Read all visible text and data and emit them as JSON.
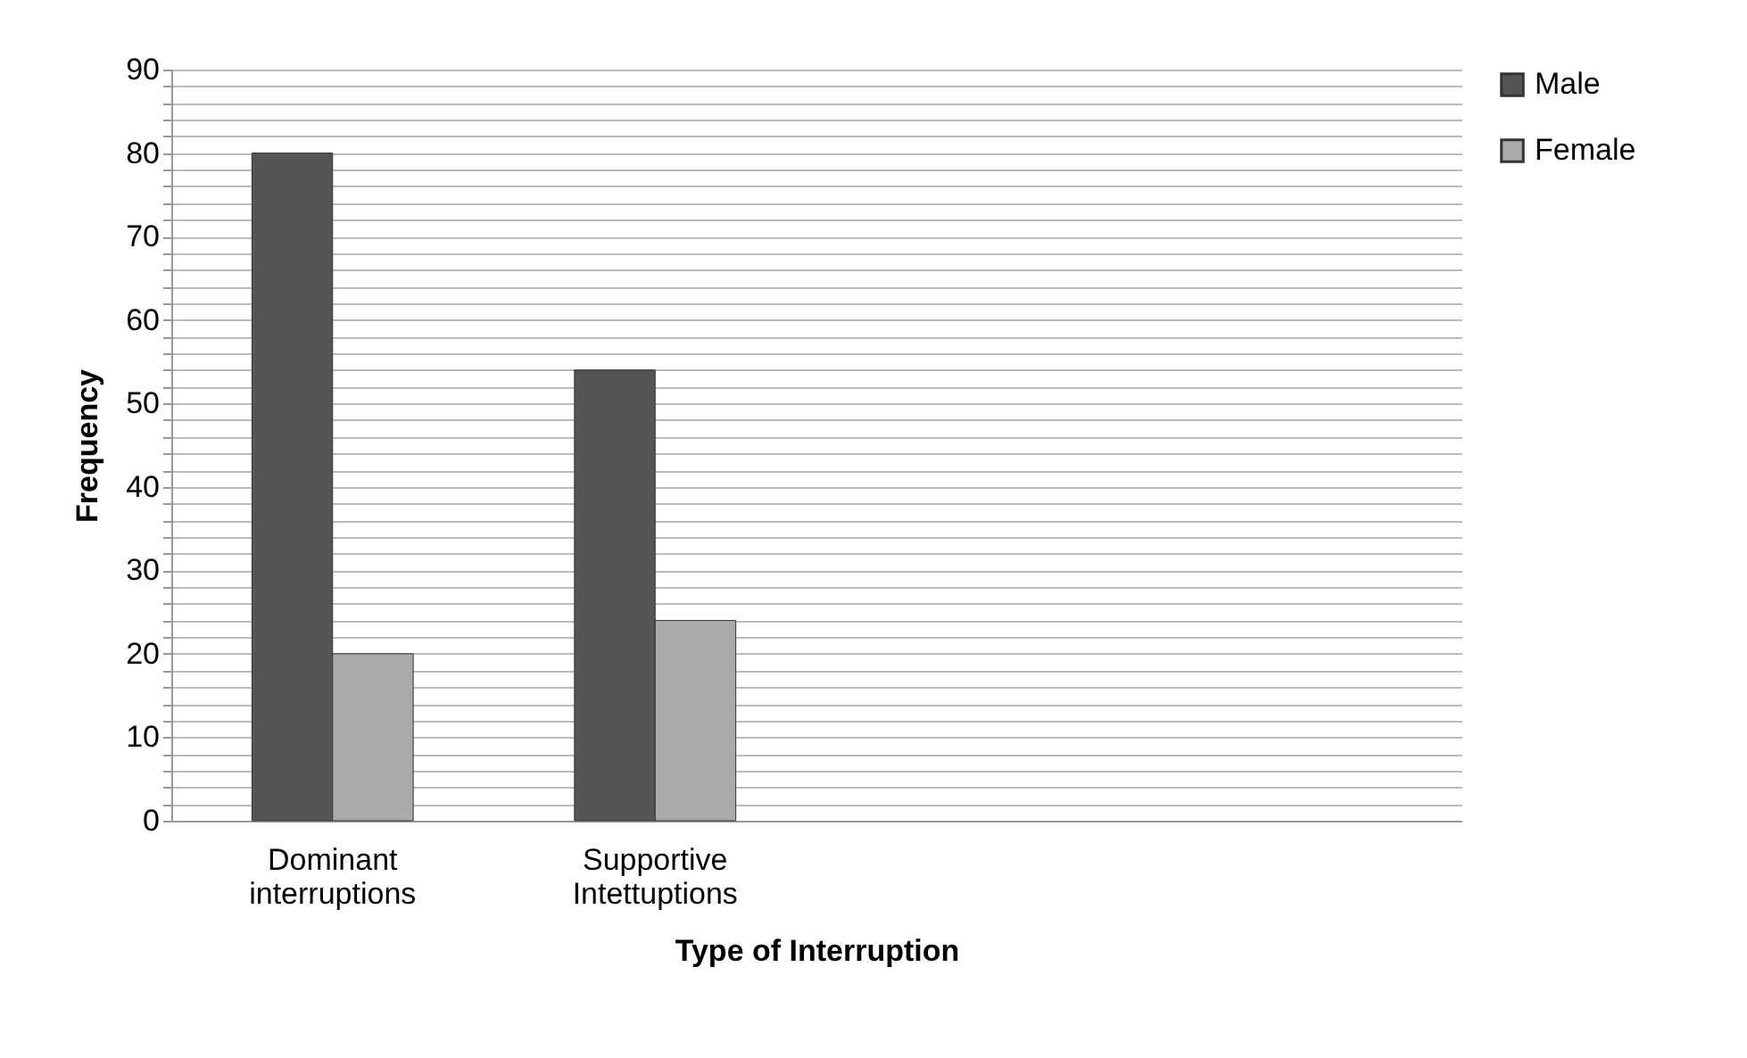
{
  "chart_data": {
    "type": "bar",
    "xlabel": "Type of  Interruption",
    "ylabel": "Frequency",
    "categories": [
      "Dominant interruptions",
      "Supportive Intettuptions",
      null,
      null
    ],
    "series": [
      {
        "name": "Male",
        "color": "#555555",
        "values": [
          80,
          54,
          null,
          null
        ]
      },
      {
        "name": "Female",
        "color": "#aaaaaa",
        "values": [
          20,
          24,
          null,
          null
        ]
      }
    ],
    "ylim": [
      0,
      90
    ],
    "yticks": [
      0,
      {
        "value": 2,
        "label": null
      },
      {
        "value": 4,
        "label": null
      },
      {
        "value": 6,
        "label": null
      },
      {
        "value": 8,
        "label": null
      },
      10,
      {
        "value": 12,
        "label": null
      },
      {
        "value": 14,
        "label": null
      },
      {
        "value": 16,
        "label": null
      },
      {
        "value": 18,
        "label": null
      },
      20,
      {
        "value": 22,
        "label": null
      },
      {
        "value": 24,
        "label": null
      },
      {
        "value": 26,
        "label": null
      },
      {
        "value": 28,
        "label": null
      },
      30,
      {
        "value": 32,
        "label": null
      },
      {
        "value": 34,
        "label": null
      },
      {
        "value": 36,
        "label": null
      },
      {
        "value": 38,
        "label": null
      },
      40,
      {
        "value": 42,
        "label": null
      },
      {
        "value": 44,
        "label": null
      },
      {
        "value": 46,
        "label": null
      },
      {
        "value": 48,
        "label": null
      },
      50,
      {
        "value": 52,
        "label": null
      },
      {
        "value": 54,
        "label": null
      },
      {
        "value": 56,
        "label": null
      },
      {
        "value": 58,
        "label": null
      },
      60,
      {
        "value": 62,
        "label": null
      },
      {
        "value": 64,
        "label": null
      },
      {
        "value": 66,
        "label": null
      },
      {
        "value": 68,
        "label": null
      },
      70,
      {
        "value": 72,
        "label": null
      },
      {
        "value": 74,
        "label": null
      },
      {
        "value": 76,
        "label": null
      },
      {
        "value": 78,
        "label": null
      },
      80,
      {
        "value": 82,
        "label": null
      },
      {
        "value": 84,
        "label": null
      },
      {
        "value": 86,
        "label": null
      },
      {
        "value": 88,
        "label": null
      },
      90
    ],
    "grid": "y",
    "legend": "right"
  }
}
